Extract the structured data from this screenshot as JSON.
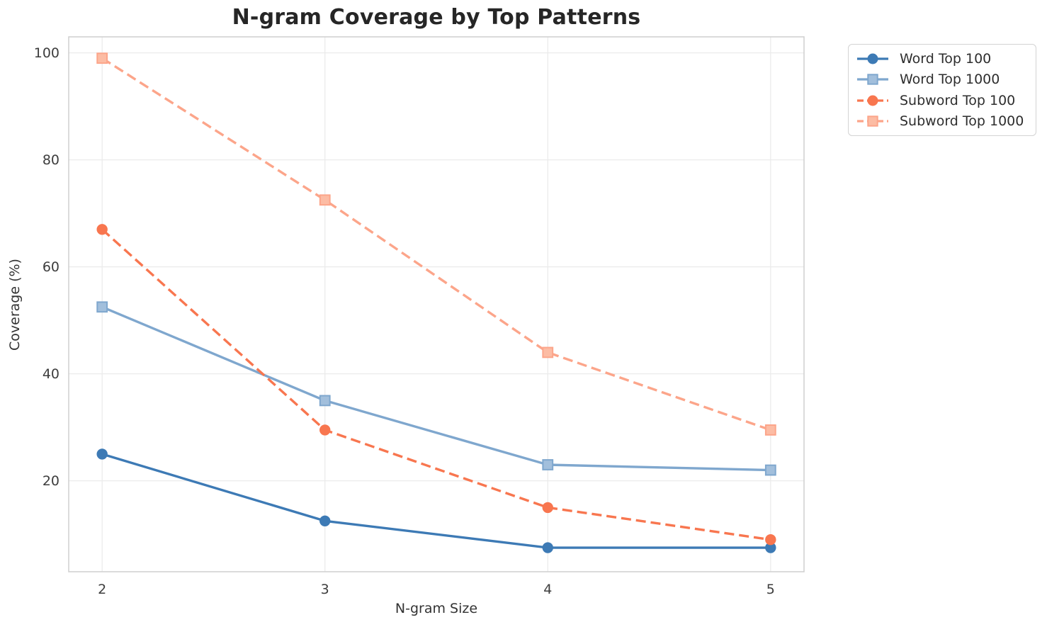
{
  "chart_data": {
    "type": "line",
    "title": "N-gram Coverage by Top Patterns",
    "xlabel": "N-gram Size",
    "ylabel": "Coverage (%)",
    "x": [
      2,
      3,
      4,
      5
    ],
    "x_ticks": [
      2,
      3,
      4,
      5
    ],
    "y_ticks": [
      20,
      40,
      60,
      80,
      100
    ],
    "xlim": [
      1.85,
      5.15
    ],
    "ylim": [
      3,
      103
    ],
    "grid": true,
    "legend_position": "outside upper right",
    "series": [
      {
        "name": "Word Top 100",
        "values": [
          25,
          12.5,
          7.5,
          7.5
        ],
        "color": "#3d7ab5",
        "marker": "circle",
        "dash": false
      },
      {
        "name": "Word Top 1000",
        "values": [
          52.5,
          35,
          23,
          22
        ],
        "color": "#7fa7ce",
        "marker": "square",
        "dash": false,
        "marker_fill": "#a2bfdc"
      },
      {
        "name": "Subword Top 100",
        "values": [
          67,
          29.5,
          15,
          9
        ],
        "color": "#f8764f",
        "marker": "circle",
        "dash": true
      },
      {
        "name": "Subword Top 1000",
        "values": [
          99,
          72.5,
          44,
          29.5
        ],
        "color": "#fca58a",
        "marker": "square",
        "dash": true,
        "marker_fill": "#fcbca4"
      }
    ],
    "style": {
      "grid_color": "#ebebeb",
      "spine_color": "#cfcfcf",
      "tick_color": "#3d3d3d",
      "title_color": "#262626",
      "label_color": "#333333",
      "background": "#ffffff"
    }
  }
}
